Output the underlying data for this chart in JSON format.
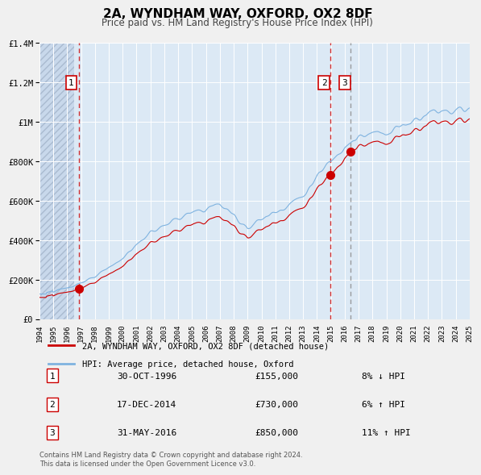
{
  "title": "2A, WYNDHAM WAY, OXFORD, OX2 8DF",
  "subtitle": "Price paid vs. HM Land Registry's House Price Index (HPI)",
  "x_start_year": 1994,
  "x_end_year": 2025,
  "y_min": 0,
  "y_max": 1400000,
  "y_ticks": [
    0,
    200000,
    400000,
    600000,
    800000,
    1000000,
    1200000,
    1400000
  ],
  "y_tick_labels": [
    "£0",
    "£200K",
    "£400K",
    "£600K",
    "£800K",
    "£1M",
    "£1.2M",
    "£1.4M"
  ],
  "background_color": "#dce9f5",
  "plot_bg_color": "#dce9f5",
  "hatch_color": "#c0d0e8",
  "sale_color": "#cc0000",
  "hpi_color": "#7fb3e0",
  "vline1_color": "#cc0000",
  "vline2_color": "#888888",
  "grid_color": "#ffffff",
  "sale_points": [
    {
      "year": 1996.83,
      "value": 155000,
      "label": "1"
    },
    {
      "year": 2014.96,
      "value": 730000,
      "label": "2"
    },
    {
      "year": 2016.42,
      "value": 850000,
      "label": "3"
    }
  ],
  "vlines_red": [
    1996.83,
    2014.96
  ],
  "vlines_dash": [
    2016.42
  ],
  "legend_entries": [
    {
      "color": "#cc0000",
      "label": "2A, WYNDHAM WAY, OXFORD, OX2 8DF (detached house)"
    },
    {
      "color": "#7fb3e0",
      "label": "HPI: Average price, detached house, Oxford"
    }
  ],
  "table_rows": [
    {
      "num": "1",
      "date": "30-OCT-1996",
      "price": "£155,000",
      "hpi": "8% ↓ HPI"
    },
    {
      "num": "2",
      "date": "17-DEC-2014",
      "price": "£730,000",
      "hpi": "6% ↑ HPI"
    },
    {
      "num": "3",
      "date": "31-MAY-2016",
      "price": "£850,000",
      "hpi": "11% ↑ HPI"
    }
  ],
  "footer": "Contains HM Land Registry data © Crown copyright and database right 2024.\nThis data is licensed under the Open Government Licence v3.0."
}
